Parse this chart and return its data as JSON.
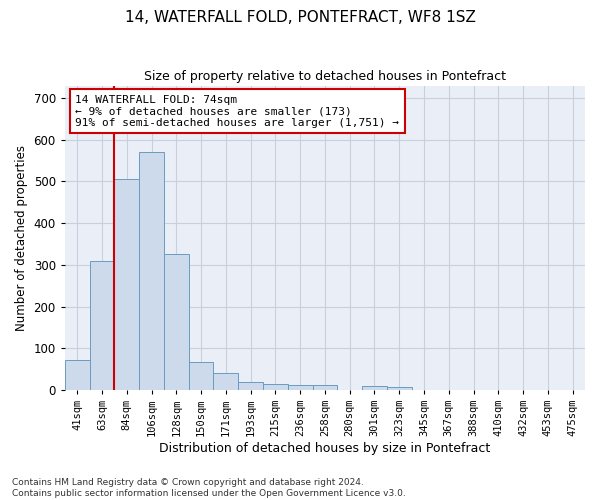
{
  "title1": "14, WATERFALL FOLD, PONTEFRACT, WF8 1SZ",
  "title2": "Size of property relative to detached houses in Pontefract",
  "xlabel": "Distribution of detached houses by size in Pontefract",
  "ylabel": "Number of detached properties",
  "categories": [
    "41sqm",
    "63sqm",
    "84sqm",
    "106sqm",
    "128sqm",
    "150sqm",
    "171sqm",
    "193sqm",
    "215sqm",
    "236sqm",
    "258sqm",
    "280sqm",
    "301sqm",
    "323sqm",
    "345sqm",
    "367sqm",
    "388sqm",
    "410sqm",
    "432sqm",
    "453sqm",
    "475sqm"
  ],
  "values": [
    72,
    310,
    505,
    570,
    325,
    68,
    40,
    20,
    14,
    12,
    12,
    0,
    10,
    7,
    0,
    0,
    0,
    0,
    0,
    0,
    0
  ],
  "bar_color": "#ccdaeb",
  "bar_edge_color": "#6a9bbf",
  "vline_x": 1.5,
  "vline_color": "#cc0000",
  "annotation_text": "14 WATERFALL FOLD: 74sqm\n← 9% of detached houses are smaller (173)\n91% of semi-detached houses are larger (1,751) →",
  "annotation_box_color": "#cc0000",
  "ylim": [
    0,
    730
  ],
  "yticks": [
    0,
    100,
    200,
    300,
    400,
    500,
    600,
    700
  ],
  "footnote": "Contains HM Land Registry data © Crown copyright and database right 2024.\nContains public sector information licensed under the Open Government Licence v3.0.",
  "grid_color": "#c8d0dc",
  "background_color": "#eaeff7"
}
